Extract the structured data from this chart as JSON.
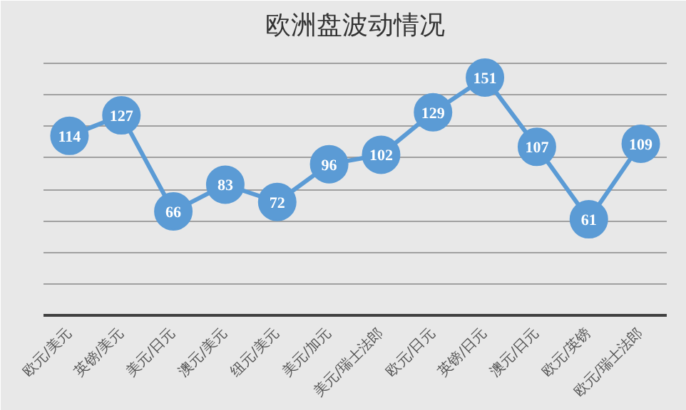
{
  "chart_data": {
    "type": "line",
    "title": "欧洲盘波动情况",
    "categories": [
      "欧元/美元",
      "英镑/美元",
      "美元/日元",
      "澳元/美元",
      "纽元/美元",
      "美元/加元",
      "美元/瑞士法郎",
      "欧元/日元",
      "英镑/日元",
      "澳元/日元",
      "欧元/英镑",
      "欧元/瑞士法郎"
    ],
    "series": [
      {
        "color": "#5b9bd5",
        "values": [
          114,
          127,
          66,
          83,
          72,
          96,
          102,
          129,
          151,
          107,
          61,
          109
        ]
      }
    ],
    "ylim": [
      0,
      170
    ],
    "yticks": [
      {
        "value": 0,
        "label": null
      },
      {
        "value": 20,
        "label": null
      },
      {
        "value": 40,
        "label": null
      },
      {
        "value": 60,
        "label": null
      },
      {
        "value": 80,
        "label": null
      },
      {
        "value": 100,
        "label": null
      },
      {
        "value": 120,
        "label": null
      },
      {
        "value": 140,
        "label": null
      },
      {
        "value": 160,
        "label": null
      }
    ],
    "grid": "y",
    "tick_labels": "x",
    "marker": "circle",
    "line_style": "solid",
    "data_labels": true
  }
}
